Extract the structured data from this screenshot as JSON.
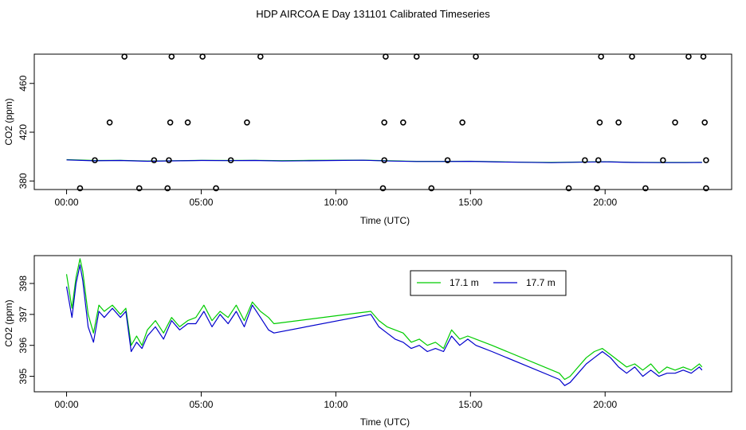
{
  "page": {
    "title": "HDP AIRCOA E  Day 131101  Calibrated Timeseries"
  },
  "chart_data": [
    {
      "type": "scatter",
      "title": "",
      "xlabel": "Time (UTC)",
      "ylabel": "CO2 (ppm)",
      "xlim": [
        -1.2,
        24.7
      ],
      "ylim": [
        373,
        484
      ],
      "xticks": [
        0,
        5,
        10,
        15,
        20
      ],
      "xtick_labels": [
        "00:00",
        "05:00",
        "10:00",
        "15:00",
        "20:00"
      ],
      "yticks": [
        380,
        420,
        460
      ],
      "ytick_labels": [
        "380",
        "420",
        "460"
      ],
      "grid": false,
      "colors": {
        "points": "#000000",
        "line_17_1": "#00cc00",
        "line_17_7": "#0000cc"
      },
      "points": {
        "x": [
          2.15,
          3.9,
          5.05,
          7.2,
          11.85,
          13.0,
          15.2,
          19.85,
          21.0,
          23.1,
          23.65,
          1.6,
          3.85,
          4.5,
          6.7,
          11.8,
          12.5,
          14.7,
          19.8,
          20.5,
          22.6,
          23.7,
          1.05,
          3.25,
          3.8,
          6.1,
          11.8,
          14.15,
          19.25,
          19.75,
          22.15,
          23.75,
          0.5,
          2.7,
          3.75,
          5.55,
          11.75,
          13.55,
          18.65,
          19.7,
          21.5,
          23.75
        ],
        "y": [
          482,
          482,
          482,
          482,
          482,
          482,
          482,
          482,
          482,
          482,
          482,
          428,
          428,
          428,
          428,
          428,
          428,
          428,
          428,
          428,
          428,
          428,
          397,
          397,
          397,
          397,
          397,
          397,
          397,
          397,
          397,
          397,
          374,
          374,
          374,
          374,
          374,
          374,
          374,
          374,
          374,
          374
        ]
      },
      "series": [
        {
          "x": [
            0,
            1,
            2,
            3,
            4,
            5,
            6,
            7,
            8,
            9,
            10,
            11,
            12,
            13,
            14,
            15,
            16,
            17,
            18,
            19,
            20,
            21,
            22,
            23,
            23.6
          ],
          "values": [
            397.5,
            396.8,
            396.9,
            396.4,
            396.6,
            396.9,
            396.8,
            396.9,
            396.7,
            396.9,
            397.0,
            397.1,
            396.6,
            396.1,
            396.1,
            396.2,
            395.8,
            395.4,
            395.2,
            395.5,
            395.8,
            395.3,
            395.2,
            395.2,
            395.3
          ]
        },
        {
          "x": [
            0,
            1,
            2,
            3,
            4,
            5,
            6,
            7,
            8,
            9,
            10,
            11,
            12,
            13,
            14,
            15,
            16,
            17,
            18,
            19,
            20,
            21,
            22,
            23,
            23.6
          ],
          "values": [
            397.3,
            396.6,
            396.8,
            396.2,
            396.5,
            396.8,
            396.7,
            396.8,
            396.4,
            396.6,
            396.8,
            397.0,
            396.4,
            396.0,
            396.0,
            396.1,
            395.6,
            395.3,
            395.0,
            395.4,
            395.7,
            395.2,
            395.1,
            395.1,
            395.2
          ]
        }
      ]
    },
    {
      "type": "line",
      "title": "",
      "xlabel": "Time (UTC)",
      "ylabel": "CO2 (ppm)",
      "xlim": [
        -1.2,
        24.7
      ],
      "ylim": [
        394.5,
        398.9
      ],
      "xticks": [
        0,
        5,
        10,
        15,
        20
      ],
      "xtick_labels": [
        "00:00",
        "05:00",
        "10:00",
        "15:00",
        "20:00"
      ],
      "yticks": [
        395,
        396,
        397,
        398
      ],
      "ytick_labels": [
        "395",
        "396",
        "397",
        "398"
      ],
      "grid": false,
      "legend": {
        "placement": "top-right",
        "entries": [
          "17.1 m",
          "17.7 m"
        ]
      },
      "series": [
        {
          "name": "17.1 m",
          "color": "#00cc00",
          "x": [
            0,
            0.2,
            0.35,
            0.5,
            0.6,
            0.8,
            1.0,
            1.2,
            1.4,
            1.7,
            2.0,
            2.2,
            2.4,
            2.6,
            2.8,
            3.0,
            3.3,
            3.6,
            3.9,
            4.2,
            4.5,
            4.8,
            5.1,
            5.4,
            5.7,
            6.0,
            6.3,
            6.6,
            6.9,
            7.2,
            7.5,
            7.7,
            11.3,
            11.6,
            11.9,
            12.2,
            12.5,
            12.8,
            13.1,
            13.4,
            13.7,
            14.0,
            14.3,
            14.6,
            14.9,
            15.2,
            15.5,
            15.8,
            18.3,
            18.5,
            18.7,
            19.0,
            19.3,
            19.6,
            19.9,
            20.2,
            20.5,
            20.8,
            21.1,
            21.4,
            21.7,
            22.0,
            22.3,
            22.6,
            22.9,
            23.2,
            23.5,
            23.6
          ],
          "values": [
            398.3,
            397.2,
            398.2,
            398.8,
            398.4,
            397.0,
            396.4,
            397.3,
            397.1,
            397.3,
            397.0,
            397.2,
            396.0,
            396.3,
            396.0,
            396.5,
            396.8,
            396.4,
            396.9,
            396.6,
            396.8,
            396.9,
            397.3,
            396.8,
            397.1,
            396.9,
            397.3,
            396.8,
            397.4,
            397.1,
            396.9,
            396.7,
            397.1,
            396.8,
            396.6,
            396.5,
            396.4,
            396.1,
            396.2,
            396.0,
            396.1,
            395.9,
            396.5,
            396.2,
            396.3,
            396.2,
            396.1,
            396.0,
            395.1,
            394.9,
            395.0,
            395.3,
            395.6,
            395.8,
            395.9,
            395.7,
            395.5,
            395.3,
            395.4,
            395.2,
            395.4,
            395.1,
            395.3,
            395.2,
            395.3,
            395.2,
            395.4,
            395.3
          ]
        },
        {
          "name": "17.7 m",
          "color": "#0000cc",
          "x": [
            0,
            0.2,
            0.35,
            0.5,
            0.6,
            0.8,
            1.0,
            1.2,
            1.4,
            1.7,
            2.0,
            2.2,
            2.4,
            2.6,
            2.8,
            3.0,
            3.3,
            3.6,
            3.9,
            4.2,
            4.5,
            4.8,
            5.1,
            5.4,
            5.7,
            6.0,
            6.3,
            6.6,
            6.9,
            7.2,
            7.5,
            7.7,
            11.3,
            11.6,
            11.9,
            12.2,
            12.5,
            12.8,
            13.1,
            13.4,
            13.7,
            14.0,
            14.3,
            14.6,
            14.9,
            15.2,
            15.5,
            15.8,
            18.3,
            18.5,
            18.7,
            19.0,
            19.3,
            19.6,
            19.9,
            20.2,
            20.5,
            20.8,
            21.1,
            21.4,
            21.7,
            22.0,
            22.3,
            22.6,
            22.9,
            23.2,
            23.5,
            23.6
          ],
          "values": [
            397.9,
            396.9,
            398.0,
            398.6,
            398.1,
            396.6,
            396.1,
            397.1,
            396.9,
            397.2,
            396.9,
            397.1,
            395.8,
            396.1,
            395.9,
            396.3,
            396.6,
            396.2,
            396.8,
            396.5,
            396.7,
            396.7,
            397.1,
            396.6,
            397.0,
            396.7,
            397.1,
            396.6,
            397.3,
            396.9,
            396.5,
            396.4,
            397.0,
            396.6,
            396.4,
            396.2,
            396.1,
            395.9,
            396.0,
            395.8,
            395.9,
            395.8,
            396.3,
            396.0,
            396.2,
            396.0,
            395.9,
            395.8,
            394.9,
            394.7,
            394.8,
            395.1,
            395.4,
            395.6,
            395.8,
            395.6,
            395.3,
            395.1,
            395.3,
            395.0,
            395.2,
            395.0,
            395.1,
            395.1,
            395.2,
            395.1,
            395.3,
            395.2
          ]
        }
      ]
    }
  ]
}
